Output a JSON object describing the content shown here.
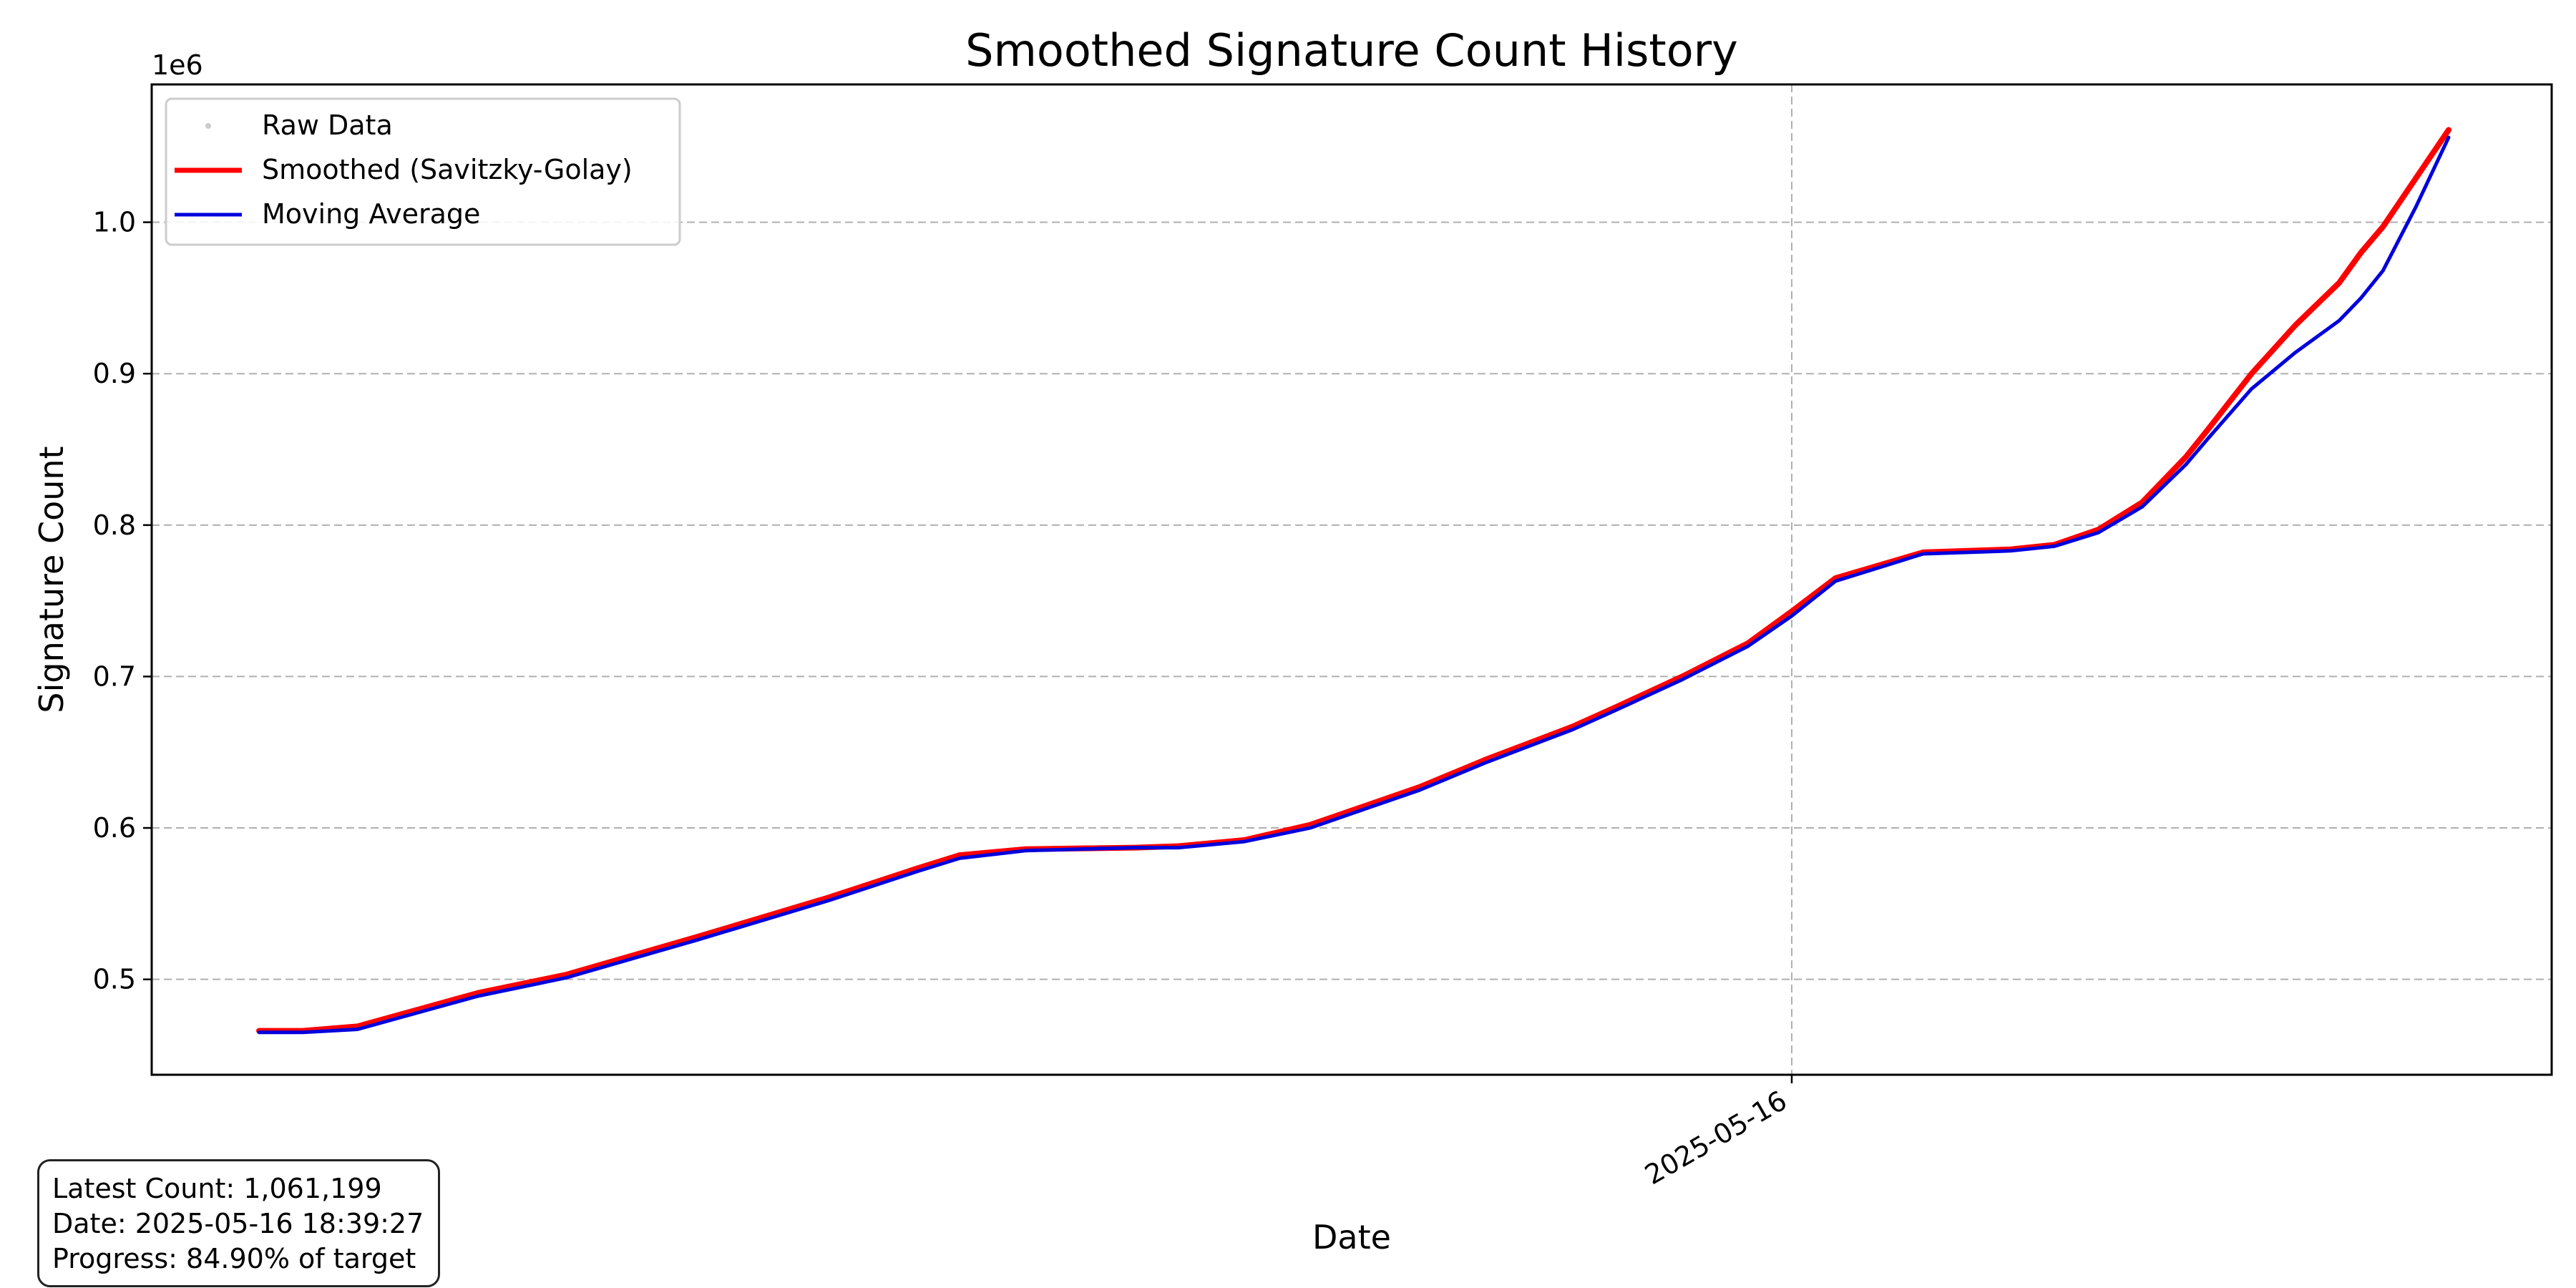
{
  "chart_data": {
    "type": "line",
    "title": "Smoothed Signature Count History",
    "xlabel": "Date",
    "ylabel": "Signature Count",
    "y_offset_label": "1e6",
    "x_tick_labels": [
      "2025-05-16"
    ],
    "y_tick_labels": [
      "0.5",
      "0.6",
      "0.7",
      "0.8",
      "0.9",
      "1.0"
    ],
    "y_ticks": [
      0.5,
      0.6,
      0.7,
      0.8,
      0.9,
      1.0
    ],
    "ylim": [
      0.437,
      1.091
    ],
    "grid": true,
    "legend_position": "top-left",
    "legend": [
      "Raw Data",
      "Smoothed (Savitzky-Golay)",
      "Moving Average"
    ],
    "series_colors": {
      "raw": "#cccccc",
      "smoothed": "#ff0000",
      "moving_average": "#0000dd"
    },
    "series": [
      {
        "name": "Smoothed (Savitzky-Golay)",
        "color": "#ff0000",
        "x_fraction": [
          0.0,
          0.02,
          0.045,
          0.1,
          0.14,
          0.2,
          0.26,
          0.3,
          0.32,
          0.35,
          0.4,
          0.42,
          0.45,
          0.48,
          0.5,
          0.53,
          0.56,
          0.6,
          0.62,
          0.65,
          0.68,
          0.7,
          0.72,
          0.76,
          0.8,
          0.82,
          0.84,
          0.86,
          0.88,
          0.89,
          0.91,
          0.93,
          0.95,
          0.96,
          0.97,
          1.0
        ],
        "values": [
          0.466,
          0.466,
          0.469,
          0.491,
          0.503,
          0.528,
          0.554,
          0.573,
          0.582,
          0.586,
          0.587,
          0.588,
          0.592,
          0.602,
          0.612,
          0.627,
          0.645,
          0.667,
          0.68,
          0.7,
          0.722,
          0.743,
          0.765,
          0.782,
          0.784,
          0.787,
          0.797,
          0.815,
          0.845,
          0.863,
          0.9,
          0.932,
          0.96,
          0.98,
          0.997,
          1.061
        ]
      },
      {
        "name": "Moving Average",
        "color": "#0000dd",
        "x_fraction": [
          0.0,
          0.02,
          0.045,
          0.1,
          0.14,
          0.2,
          0.26,
          0.3,
          0.32,
          0.35,
          0.4,
          0.42,
          0.45,
          0.48,
          0.5,
          0.53,
          0.56,
          0.6,
          0.62,
          0.65,
          0.68,
          0.7,
          0.72,
          0.76,
          0.8,
          0.82,
          0.84,
          0.86,
          0.88,
          0.89,
          0.91,
          0.93,
          0.95,
          0.96,
          0.97,
          0.985,
          1.0
        ],
        "values": [
          0.465,
          0.465,
          0.467,
          0.489,
          0.501,
          0.526,
          0.552,
          0.571,
          0.58,
          0.585,
          0.587,
          0.587,
          0.591,
          0.6,
          0.61,
          0.625,
          0.643,
          0.665,
          0.678,
          0.698,
          0.72,
          0.74,
          0.763,
          0.781,
          0.783,
          0.786,
          0.795,
          0.812,
          0.84,
          0.857,
          0.89,
          0.914,
          0.935,
          0.95,
          0.968,
          1.01,
          1.056
        ]
      }
    ]
  },
  "info_box": {
    "latest_count": "Latest Count: 1,061,199",
    "date": "Date: 2025-05-16 18:39:27",
    "progress": "Progress: 84.90% of target"
  }
}
